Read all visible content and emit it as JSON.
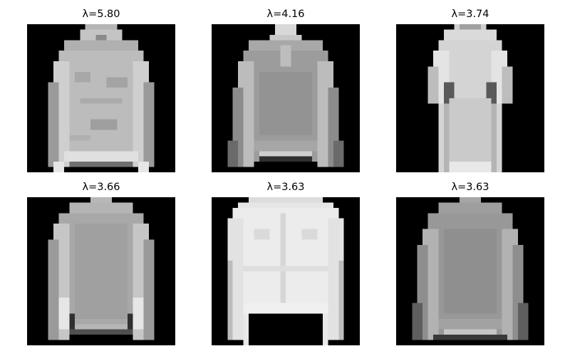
{
  "figure": {
    "panels": [
      {
        "title": "λ=5.80",
        "garment": "hooded-pullover-image"
      },
      {
        "title": "λ=4.16",
        "garment": "zip-pullover-image"
      },
      {
        "title": "λ=3.74",
        "garment": "long-dress-image"
      },
      {
        "title": "λ=3.66",
        "garment": "long-sleeve-top-image"
      },
      {
        "title": "λ=3.63",
        "garment": "white-shirt-image"
      },
      {
        "title": "λ=3.63",
        "garment": "grey-pullover-image"
      }
    ],
    "colors": {
      "background": "#000000",
      "text": "#000000"
    }
  }
}
